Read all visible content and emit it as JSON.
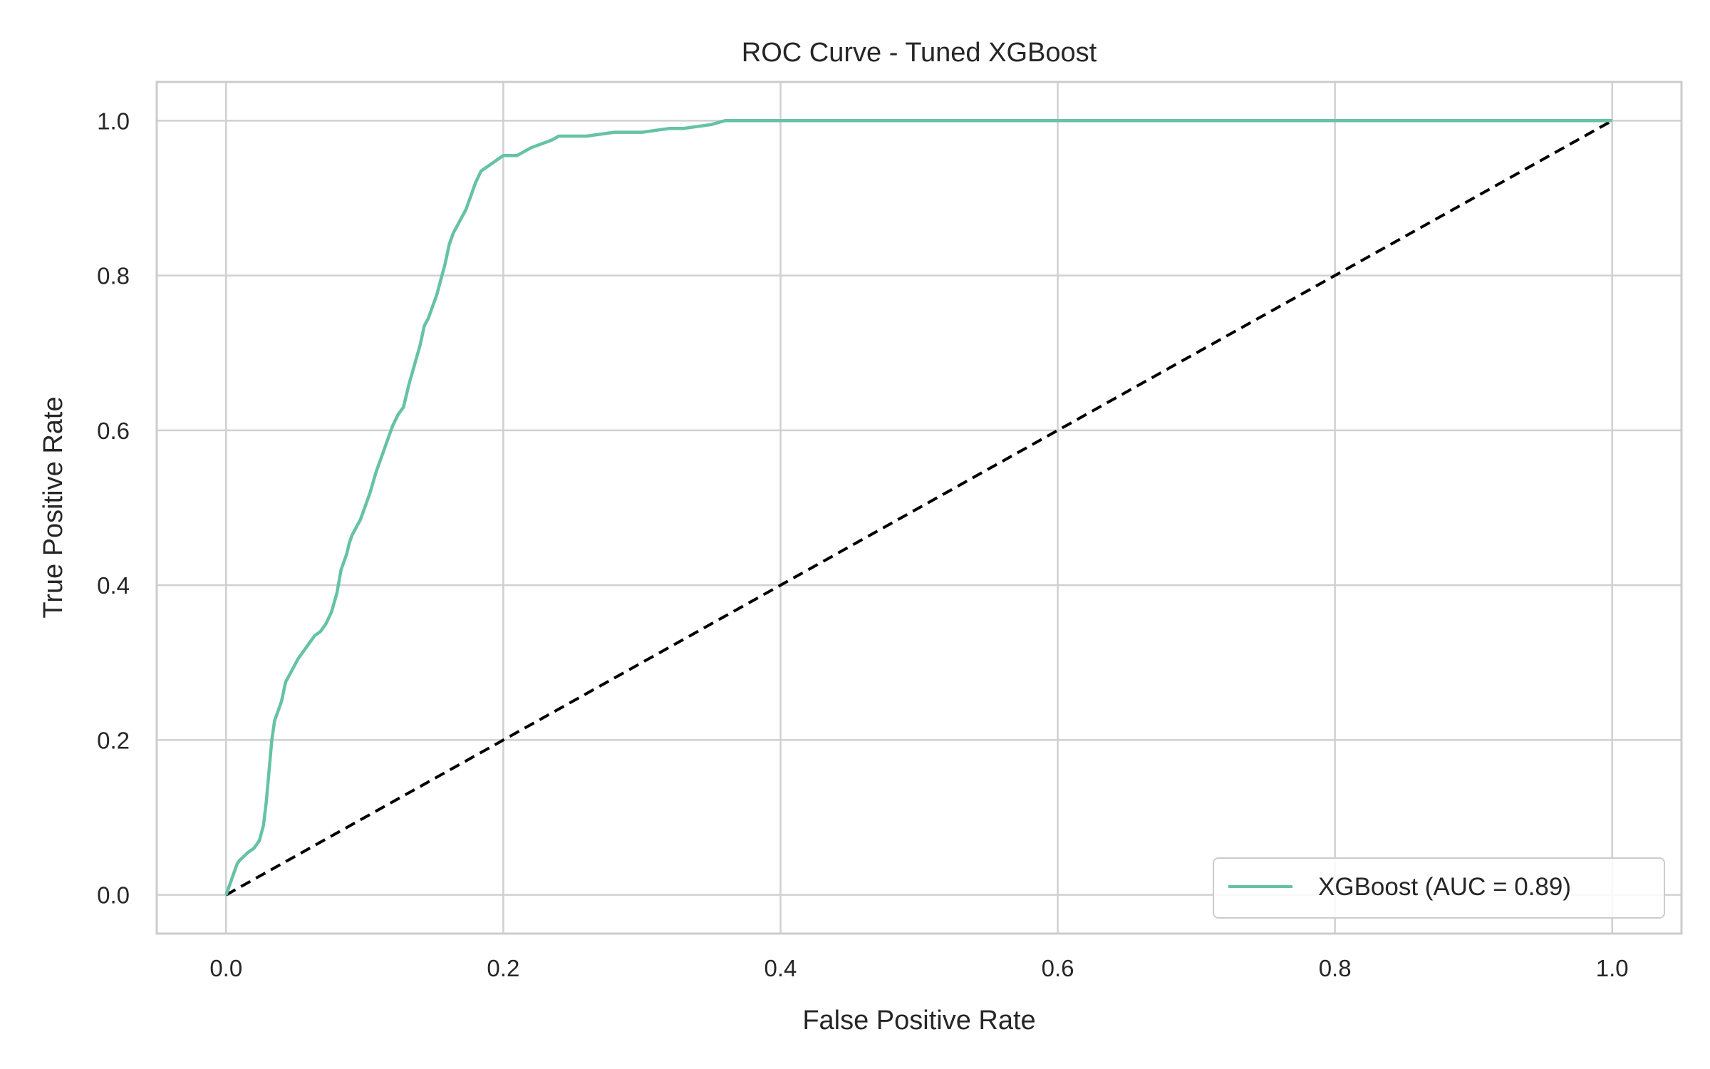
{
  "chart_data": {
    "type": "line",
    "title": "ROC Curve - Tuned XGBoost",
    "xlabel": "False Positive Rate",
    "ylabel": "True Positive Rate",
    "xlim": [
      -0.05,
      1.05
    ],
    "ylim": [
      -0.05,
      1.05
    ],
    "xticks": [
      "0.0",
      "0.2",
      "0.4",
      "0.6",
      "0.8",
      "1.0"
    ],
    "yticks": [
      "0.0",
      "0.2",
      "0.4",
      "0.6",
      "0.8",
      "1.0"
    ],
    "grid": true,
    "legend_position": "lower-right",
    "series": [
      {
        "name": "XGBoost (AUC = 0.89)",
        "color": "#66c2a5",
        "style": "solid",
        "x": [
          0.0,
          0.002,
          0.004,
          0.006,
          0.008,
          0.01,
          0.013,
          0.016,
          0.02,
          0.024,
          0.027,
          0.029,
          0.031,
          0.033,
          0.035,
          0.037,
          0.04,
          0.043,
          0.046,
          0.049,
          0.052,
          0.056,
          0.06,
          0.064,
          0.068,
          0.072,
          0.076,
          0.08,
          0.083,
          0.085,
          0.087,
          0.089,
          0.091,
          0.094,
          0.097,
          0.1,
          0.104,
          0.108,
          0.112,
          0.116,
          0.12,
          0.124,
          0.128,
          0.132,
          0.136,
          0.14,
          0.143,
          0.146,
          0.149,
          0.152,
          0.155,
          0.158,
          0.161,
          0.164,
          0.167,
          0.17,
          0.173,
          0.176,
          0.18,
          0.184,
          0.188,
          0.192,
          0.196,
          0.2,
          0.21,
          0.22,
          0.235,
          0.24,
          0.26,
          0.28,
          0.3,
          0.32,
          0.33,
          0.35,
          0.36,
          0.37,
          0.38,
          1.0
        ],
        "y": [
          0.0,
          0.01,
          0.02,
          0.03,
          0.04,
          0.045,
          0.05,
          0.055,
          0.06,
          0.07,
          0.09,
          0.12,
          0.16,
          0.2,
          0.225,
          0.235,
          0.25,
          0.275,
          0.285,
          0.295,
          0.305,
          0.315,
          0.325,
          0.335,
          0.34,
          0.35,
          0.365,
          0.39,
          0.42,
          0.43,
          0.44,
          0.455,
          0.465,
          0.475,
          0.485,
          0.5,
          0.52,
          0.545,
          0.565,
          0.585,
          0.605,
          0.62,
          0.63,
          0.66,
          0.685,
          0.71,
          0.735,
          0.745,
          0.76,
          0.775,
          0.795,
          0.815,
          0.84,
          0.855,
          0.865,
          0.875,
          0.885,
          0.9,
          0.92,
          0.935,
          0.94,
          0.945,
          0.95,
          0.955,
          0.955,
          0.965,
          0.975,
          0.98,
          0.98,
          0.985,
          0.985,
          0.99,
          0.99,
          0.995,
          1.0,
          1.0,
          1.0,
          1.0
        ]
      },
      {
        "name": "",
        "color": "#000000",
        "style": "dashed",
        "x": [
          0.0,
          1.0
        ],
        "y": [
          0.0,
          1.0
        ]
      }
    ]
  }
}
